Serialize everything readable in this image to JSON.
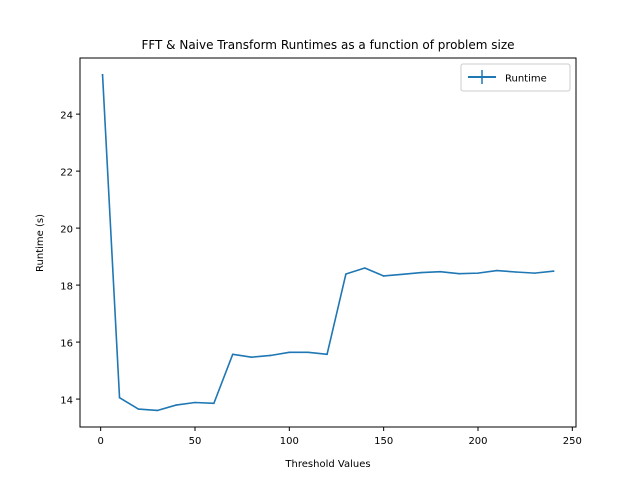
{
  "chart_data": {
    "type": "line",
    "title": "FFT & Naive Transform Runtimes as a function of problem size",
    "xlabel": "Threshold Values",
    "ylabel": "Runtime (s)",
    "xlim": [
      -10.95,
      251.95
    ],
    "ylim": [
      13.02,
      25.97
    ],
    "xticks": [
      0,
      50,
      100,
      150,
      200,
      250
    ],
    "yticks": [
      14,
      16,
      18,
      20,
      22,
      24
    ],
    "grid": false,
    "legend_position": "top-right",
    "line_color": "#1f77b4",
    "series": [
      {
        "name": "Runtime",
        "x": [
          1,
          10,
          20,
          30,
          40,
          50,
          60,
          70,
          80,
          90,
          100,
          110,
          120,
          130,
          140,
          150,
          160,
          170,
          180,
          190,
          200,
          210,
          220,
          230,
          240
        ],
        "y": [
          25.38,
          14.05,
          13.65,
          13.6,
          13.79,
          13.88,
          13.85,
          15.57,
          15.47,
          15.53,
          15.64,
          15.64,
          15.57,
          18.39,
          18.6,
          18.32,
          18.38,
          18.44,
          18.47,
          18.4,
          18.42,
          18.51,
          18.46,
          18.42,
          18.49
        ]
      }
    ]
  }
}
